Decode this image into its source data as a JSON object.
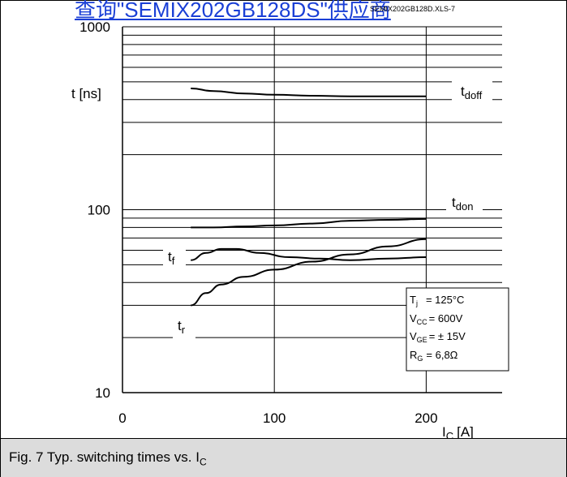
{
  "header": {
    "link_text": "查询\"SEMIX202GB128DS\"供应商",
    "file_ref": "SEMIX202GB128D.XLS-7"
  },
  "caption": {
    "text": "Fig. 7 Typ. switching times vs. I",
    "sub": "C"
  },
  "conditions": {
    "tj": "= 125°C",
    "vcc": "= 600V",
    "vge": "= ± 15V",
    "rg": "= 6,8Ω"
  },
  "chart_data": {
    "type": "line",
    "title": "",
    "xlabel": "I_C [A]",
    "ylabel": "t [ns]",
    "xlim": [
      0,
      250
    ],
    "ylim": [
      10,
      1000
    ],
    "yscale": "log",
    "x_ticks": [
      "0",
      "100",
      "200"
    ],
    "y_ticks": [
      "10",
      "100",
      "1000"
    ],
    "grid": true,
    "series": [
      {
        "name": "t_doff",
        "x": [
          45,
          60,
          80,
          100,
          125,
          150,
          175,
          200
        ],
        "y": [
          460,
          445,
          432,
          425,
          420,
          417,
          417,
          417
        ]
      },
      {
        "name": "t_don",
        "x": [
          45,
          60,
          80,
          100,
          125,
          150,
          175,
          200
        ],
        "y": [
          80,
          80,
          81,
          82,
          84,
          87,
          88,
          89
        ]
      },
      {
        "name": "t_f",
        "x": [
          45,
          55,
          65,
          75,
          90,
          110,
          130,
          150,
          175,
          200
        ],
        "y": [
          53,
          58,
          61,
          61,
          58,
          55,
          54,
          53,
          54,
          55
        ]
      },
      {
        "name": "t_r",
        "x": [
          45,
          55,
          65,
          80,
          100,
          125,
          150,
          175,
          200
        ],
        "y": [
          30,
          35,
          39,
          43,
          47,
          52,
          57,
          63,
          69
        ]
      }
    ]
  }
}
